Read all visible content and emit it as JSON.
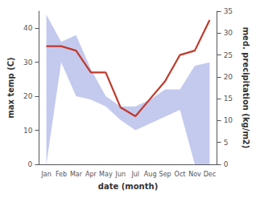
{
  "chart_data": {
    "type": "area",
    "xlabel": "date (month)",
    "ylabel": "max temp (C)",
    "y2label": "med. precipitation (kg/m2)",
    "categories": [
      "Jan",
      "Feb",
      "Mar",
      "Apr",
      "May",
      "Jun",
      "Jul",
      "Aug",
      "Sep",
      "Oct",
      "Nov",
      "Dec"
    ],
    "series": [
      {
        "type": "area",
        "color": "#b0b8e8",
        "values": [
          44,
          36,
          38,
          28,
          20,
          17,
          17,
          19,
          22,
          22,
          29,
          30
        ]
      },
      {
        "type": "area",
        "color": "#ffffff",
        "values": [
          0,
          30,
          20,
          19,
          17,
          13,
          10,
          12,
          14,
          16,
          0,
          0
        ]
      },
      {
        "type": "line",
        "color": "#c0392b",
        "axis": "y2",
        "values": [
          27,
          27,
          26,
          21,
          21,
          13,
          11,
          15,
          19,
          25,
          26,
          33
        ]
      }
    ],
    "ylim": [
      0,
      45
    ],
    "yticks": [
      0,
      10,
      20,
      30,
      40
    ],
    "y2lim": [
      0,
      35
    ],
    "y2ticks": [
      0,
      5,
      10,
      15,
      20,
      25,
      30,
      35
    ],
    "grid": false,
    "legend": null
  }
}
